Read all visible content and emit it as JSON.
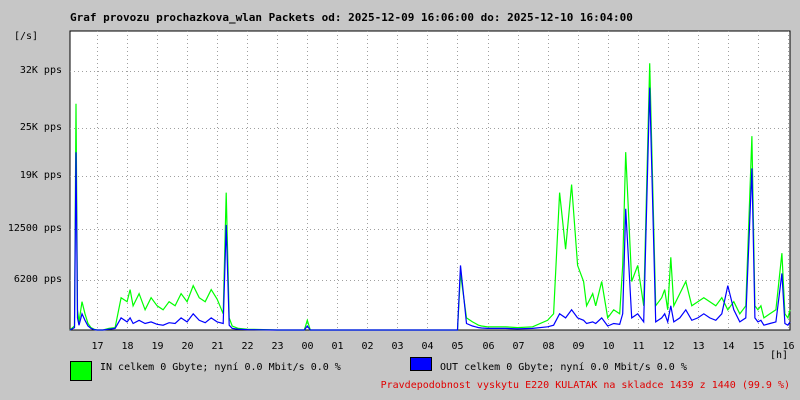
{
  "title": "Graf provozu prochazkova_wlan Packets od: 2025-12-09 16:06:00 do: 2025-12-10 16:04:00",
  "y_unit": "[/s]",
  "x_unit": "[h]",
  "colors": {
    "in": "#00ff00",
    "out": "#0000ff",
    "grid": "#a0a0a0",
    "plot_bg": "#ffffff",
    "prob_text": "#e00000"
  },
  "legend": {
    "in_text": "IN celkem 0 Gbyte; nyní   0.0 Mbit/s 0.0 %",
    "out_text": "OUT celkem 0 Gbyte; nyní   0.0 Mbit/s 0.0 %"
  },
  "probability_text": "Pravdepodobnost vyskytu E220 KULATAK na skladce 1439 z 1440 (99.9 %)",
  "chart_data": {
    "type": "area",
    "title": "Graf provozu prochazkova_wlan Packets od: 2025-12-09 16:06:00 do: 2025-12-10 16:04:00",
    "ylabel": "[/s]",
    "xlabel": "[h]",
    "ylim": [
      0,
      37000
    ],
    "y_ticks": [
      {
        "value": 6200,
        "label": "6200 pps"
      },
      {
        "value": 12500,
        "label": "12500 pps"
      },
      {
        "value": 19000,
        "label": "19K pps"
      },
      {
        "value": 25000,
        "label": "25K pps"
      },
      {
        "value": 32000,
        "label": "32K pps"
      }
    ],
    "x_ticks": [
      "17",
      "18",
      "19",
      "20",
      "21",
      "22",
      "23",
      "00",
      "01",
      "02",
      "03",
      "04",
      "05",
      "06",
      "07",
      "08",
      "09",
      "10",
      "11",
      "12",
      "13",
      "14",
      "15",
      "16"
    ],
    "x_tick_hours": [
      17,
      18,
      19,
      20,
      21,
      22,
      23,
      24,
      25,
      26,
      27,
      28,
      29,
      30,
      31,
      32,
      33,
      34,
      35,
      36,
      37,
      38,
      39,
      40
    ],
    "xlim": [
      16.1,
      40.07
    ],
    "grid": true,
    "series": [
      {
        "name": "IN",
        "x": [
          16.1,
          16.25,
          16.3,
          16.35,
          16.4,
          16.5,
          16.6,
          16.7,
          16.8,
          16.9,
          17.0,
          17.2,
          17.4,
          17.6,
          17.8,
          18.0,
          18.1,
          18.2,
          18.4,
          18.6,
          18.8,
          19.0,
          19.2,
          19.4,
          19.6,
          19.8,
          20.0,
          20.2,
          20.4,
          20.6,
          20.8,
          21.0,
          21.2,
          21.3,
          21.4,
          21.5,
          21.7,
          22.0,
          23.0,
          23.9,
          24.0,
          24.1,
          24.5,
          25.0,
          26.0,
          27.0,
          28.0,
          28.9,
          29.0,
          29.1,
          29.3,
          29.5,
          29.6,
          29.7,
          29.8,
          30.0,
          30.3,
          30.6,
          31.0,
          31.5,
          32.0,
          32.2,
          32.4,
          32.6,
          32.8,
          33.0,
          33.2,
          33.3,
          33.5,
          33.6,
          33.8,
          34.0,
          34.2,
          34.4,
          34.5,
          34.6,
          34.8,
          35.0,
          35.2,
          35.4,
          35.6,
          35.8,
          35.9,
          36.0,
          36.1,
          36.2,
          36.4,
          36.6,
          36.8,
          37.0,
          37.2,
          37.4,
          37.6,
          37.8,
          38.0,
          38.2,
          38.4,
          38.6,
          38.8,
          38.9,
          39.0,
          39.1,
          39.2,
          39.4,
          39.6,
          39.8,
          39.9,
          40.0,
          40.07
        ],
        "values": [
          0,
          500,
          28000,
          2500,
          1000,
          3500,
          2000,
          800,
          300,
          100,
          0,
          0,
          200,
          300,
          4000,
          3500,
          5000,
          3000,
          4500,
          2500,
          4000,
          3000,
          2500,
          3500,
          3000,
          4500,
          3500,
          5500,
          4000,
          3500,
          5000,
          3800,
          2000,
          17000,
          1500,
          500,
          200,
          100,
          0,
          0,
          1200,
          0,
          0,
          0,
          0,
          0,
          0,
          0,
          0,
          7000,
          1500,
          1000,
          800,
          600,
          500,
          400,
          400,
          400,
          300,
          400,
          1200,
          2000,
          17000,
          10000,
          18000,
          8000,
          6000,
          3000,
          4500,
          3000,
          6000,
          1500,
          2500,
          2000,
          8000,
          22000,
          6000,
          8000,
          3000,
          33000,
          3000,
          4000,
          5000,
          2500,
          9000,
          3000,
          4500,
          6000,
          3000,
          3500,
          4000,
          3500,
          3000,
          4000,
          2500,
          3500,
          2000,
          3000,
          24000,
          3000,
          2500,
          3000,
          1500,
          2000,
          2500,
          9500,
          2000,
          1500,
          2500
        ]
      },
      {
        "name": "OUT",
        "x": [
          16.1,
          16.25,
          16.3,
          16.35,
          16.4,
          16.5,
          16.6,
          16.7,
          16.8,
          16.9,
          17.0,
          17.2,
          17.4,
          17.6,
          17.8,
          18.0,
          18.1,
          18.2,
          18.4,
          18.6,
          18.8,
          19.0,
          19.2,
          19.4,
          19.6,
          19.8,
          20.0,
          20.2,
          20.4,
          20.6,
          20.8,
          21.0,
          21.2,
          21.3,
          21.4,
          21.5,
          21.7,
          22.0,
          23.0,
          23.9,
          24.0,
          24.1,
          24.5,
          25.0,
          26.0,
          27.0,
          28.0,
          28.9,
          29.0,
          29.1,
          29.3,
          29.5,
          29.6,
          29.7,
          29.8,
          30.0,
          30.3,
          30.6,
          31.0,
          31.5,
          32.0,
          32.2,
          32.4,
          32.6,
          32.8,
          33.0,
          33.2,
          33.3,
          33.5,
          33.6,
          33.8,
          34.0,
          34.2,
          34.4,
          34.5,
          34.6,
          34.8,
          35.0,
          35.2,
          35.4,
          35.6,
          35.8,
          35.9,
          36.0,
          36.1,
          36.2,
          36.4,
          36.6,
          36.8,
          37.0,
          37.2,
          37.4,
          37.6,
          37.8,
          38.0,
          38.2,
          38.4,
          38.6,
          38.8,
          38.9,
          39.0,
          39.1,
          39.2,
          39.4,
          39.6,
          39.8,
          39.9,
          40.0,
          40.07
        ],
        "values": [
          0,
          300,
          22000,
          1500,
          600,
          2000,
          1200,
          500,
          200,
          50,
          0,
          0,
          100,
          200,
          1500,
          1000,
          1500,
          800,
          1200,
          800,
          1000,
          700,
          600,
          900,
          800,
          1500,
          1000,
          2000,
          1200,
          900,
          1500,
          1000,
          800,
          13000,
          600,
          200,
          100,
          50,
          0,
          0,
          500,
          0,
          0,
          0,
          0,
          0,
          0,
          0,
          0,
          8000,
          800,
          500,
          400,
          300,
          250,
          200,
          200,
          200,
          150,
          200,
          400,
          600,
          2000,
          1500,
          2500,
          1500,
          1200,
          800,
          1000,
          800,
          1500,
          500,
          800,
          700,
          2000,
          15000,
          1500,
          2000,
          1000,
          30000,
          1000,
          1500,
          2000,
          1000,
          3000,
          1000,
          1500,
          2500,
          1200,
          1500,
          2000,
          1500,
          1200,
          2000,
          5500,
          2500,
          1000,
          1500,
          20000,
          1500,
          1000,
          1200,
          600,
          800,
          1000,
          7000,
          800,
          600,
          1000
        ]
      }
    ]
  }
}
